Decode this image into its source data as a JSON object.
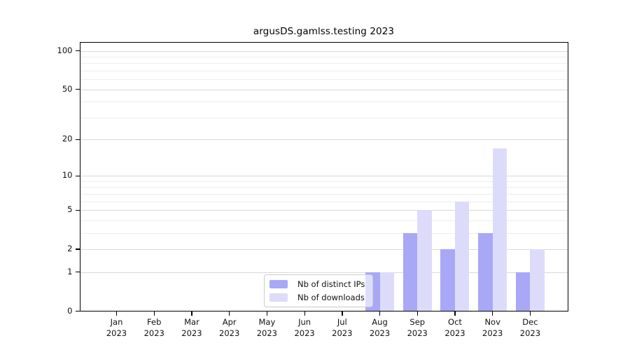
{
  "title": "argusDS.gamlss.testing 2023",
  "colors": {
    "distinct_ips_bar": "#a8a8f7",
    "downloads_bar": "#dcdcfa",
    "grid_major": "#d9d9d9",
    "grid_minor": "#ededed",
    "axis": "#000000",
    "legend_border": "#cccccc"
  },
  "legend": {
    "items": [
      {
        "label": "Nb of distinct IPs",
        "swatch": "distinct-ips-swatch"
      },
      {
        "label": "Nb of downloads",
        "swatch": "downloads-swatch"
      }
    ]
  },
  "chart_data": {
    "type": "bar",
    "title": "argusDS.gamlss.testing 2023",
    "categories": [
      "Jan\n2023",
      "Feb\n2023",
      "Mar\n2023",
      "Apr\n2023",
      "May\n2023",
      "Jun\n2023",
      "Jul\n2023",
      "Aug\n2023",
      "Sep\n2023",
      "Oct\n2023",
      "Nov\n2023",
      "Dec\n2023"
    ],
    "series": [
      {
        "name": "Nb of distinct IPs",
        "color": "#a8a8f7",
        "values": [
          0,
          0,
          0,
          0,
          0,
          0,
          0,
          1,
          3,
          2,
          3,
          1
        ]
      },
      {
        "name": "Nb of downloads",
        "color": "#dcdcfa",
        "values": [
          0,
          0,
          0,
          0,
          0,
          0,
          0,
          1,
          5,
          6,
          17,
          2
        ]
      }
    ],
    "xlabel": "",
    "ylabel": "",
    "y_scale": "log1p",
    "y_major_ticks": [
      0,
      1,
      2,
      5,
      10,
      20,
      50,
      100
    ],
    "y_minor_gridlines": [
      3,
      4,
      6,
      7,
      8,
      9,
      30,
      40,
      60,
      70,
      80,
      90
    ],
    "ylim": [
      0,
      117
    ],
    "grid": "horizontal",
    "legend_position": "inside-bottom-center"
  }
}
